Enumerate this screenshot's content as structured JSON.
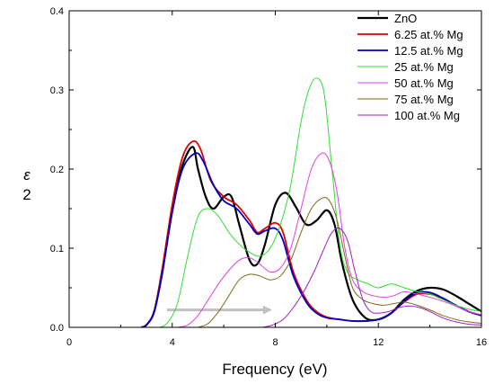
{
  "chart_data": {
    "type": "line",
    "xlabel": "Frequency (eV)",
    "ylabel": "ε",
    "ylabel_sub": "2",
    "xlim": [
      0,
      16
    ],
    "ylim": [
      0,
      0.4
    ],
    "xticks": [
      0,
      4,
      8,
      12,
      16
    ],
    "yticks": [
      0.0,
      0.1,
      0.2,
      0.3,
      0.4
    ],
    "xtick_labels": [
      "0",
      "4",
      "8",
      "12",
      "16"
    ],
    "ytick_labels": [
      "0.0",
      "0.1",
      "0.2",
      "0.3",
      "0.4"
    ],
    "grid": false,
    "legend_position": "top-right",
    "series": [
      {
        "name": "ZnO",
        "color": "#000000",
        "x": [
          2.8,
          3.0,
          3.3,
          3.6,
          4.0,
          4.4,
          4.8,
          5.0,
          5.3,
          5.6,
          6.0,
          6.3,
          6.6,
          7.0,
          7.3,
          7.6,
          8.0,
          8.4,
          8.8,
          9.2,
          9.6,
          10.0,
          10.3,
          10.6,
          11.0,
          11.5,
          12.0,
          12.5,
          13.0,
          13.5,
          14.0,
          14.5,
          15.0,
          15.5,
          16.0
        ],
        "y": [
          0.0,
          0.003,
          0.02,
          0.07,
          0.15,
          0.205,
          0.228,
          0.2,
          0.165,
          0.15,
          0.165,
          0.165,
          0.13,
          0.085,
          0.08,
          0.105,
          0.155,
          0.17,
          0.152,
          0.13,
          0.135,
          0.148,
          0.13,
          0.08,
          0.035,
          0.012,
          0.01,
          0.018,
          0.035,
          0.046,
          0.05,
          0.048,
          0.04,
          0.03,
          0.02
        ]
      },
      {
        "name": "6.25 at.% Mg",
        "color": "#e00000",
        "x": [
          2.8,
          3.0,
          3.3,
          3.6,
          4.0,
          4.4,
          4.8,
          5.1,
          5.5,
          6.0,
          6.5,
          7.0,
          7.3,
          7.6,
          8.0,
          8.3,
          8.7,
          9.2,
          9.6,
          10.0,
          10.5,
          11.0,
          11.5,
          12.0,
          12.5,
          13.0,
          13.5,
          14.0,
          14.5,
          15.0,
          15.5,
          16.0
        ],
        "y": [
          0.0,
          0.003,
          0.02,
          0.07,
          0.155,
          0.215,
          0.235,
          0.225,
          0.185,
          0.165,
          0.155,
          0.135,
          0.12,
          0.125,
          0.132,
          0.12,
          0.07,
          0.035,
          0.02,
          0.013,
          0.01,
          0.008,
          0.008,
          0.01,
          0.018,
          0.032,
          0.042,
          0.042,
          0.036,
          0.028,
          0.02,
          0.015
        ]
      },
      {
        "name": "12.5 at.% Mg",
        "color": "#0000c0",
        "x": [
          2.8,
          3.0,
          3.3,
          3.6,
          4.0,
          4.4,
          4.9,
          5.2,
          5.6,
          6.0,
          6.5,
          7.0,
          7.3,
          7.6,
          8.0,
          8.3,
          8.7,
          9.2,
          9.6,
          10.0,
          10.5,
          11.0,
          11.5,
          12.0,
          12.5,
          13.0,
          13.5,
          14.0,
          14.5,
          15.0,
          15.5,
          16.0
        ],
        "y": [
          0.0,
          0.003,
          0.02,
          0.065,
          0.145,
          0.2,
          0.22,
          0.21,
          0.18,
          0.16,
          0.15,
          0.13,
          0.118,
          0.122,
          0.125,
          0.11,
          0.065,
          0.032,
          0.018,
          0.012,
          0.01,
          0.008,
          0.008,
          0.01,
          0.018,
          0.033,
          0.044,
          0.044,
          0.037,
          0.028,
          0.02,
          0.015
        ]
      },
      {
        "name": "25 at.% Mg",
        "color": "#33dd33",
        "x": [
          3.5,
          3.8,
          4.2,
          4.6,
          5.0,
          5.4,
          5.8,
          6.2,
          6.6,
          7.0,
          7.4,
          7.8,
          8.2,
          8.6,
          9.0,
          9.3,
          9.6,
          9.9,
          10.2,
          10.5,
          10.8,
          11.2,
          11.6,
          12.0,
          12.5,
          13.0,
          13.5,
          14.0,
          14.5,
          15.0,
          15.5,
          16.0
        ],
        "y": [
          0.0,
          0.005,
          0.03,
          0.09,
          0.14,
          0.15,
          0.14,
          0.12,
          0.105,
          0.095,
          0.09,
          0.1,
          0.13,
          0.18,
          0.26,
          0.3,
          0.315,
          0.295,
          0.2,
          0.105,
          0.07,
          0.06,
          0.055,
          0.05,
          0.055,
          0.05,
          0.045,
          0.042,
          0.035,
          0.028,
          0.023,
          0.02
        ]
      },
      {
        "name": "50 at.% Mg",
        "color": "#e040e0",
        "x": [
          4.2,
          4.6,
          5.0,
          5.4,
          5.8,
          6.2,
          6.6,
          7.0,
          7.4,
          7.8,
          8.2,
          8.6,
          9.0,
          9.4,
          9.8,
          10.1,
          10.4,
          10.7,
          11.0,
          11.4,
          11.8,
          12.2,
          12.6,
          13.0,
          13.5,
          14.0,
          14.5,
          15.0,
          15.5,
          16.0
        ],
        "y": [
          0.0,
          0.003,
          0.015,
          0.035,
          0.055,
          0.072,
          0.085,
          0.088,
          0.08,
          0.07,
          0.075,
          0.1,
          0.15,
          0.2,
          0.22,
          0.21,
          0.17,
          0.1,
          0.06,
          0.045,
          0.04,
          0.038,
          0.04,
          0.045,
          0.042,
          0.038,
          0.033,
          0.027,
          0.02,
          0.016
        ]
      },
      {
        "name": "75 at.% Mg",
        "color": "#7a6a18",
        "x": [
          5.0,
          5.4,
          5.8,
          6.2,
          6.6,
          7.0,
          7.4,
          7.8,
          8.2,
          8.6,
          9.0,
          9.4,
          9.8,
          10.1,
          10.4,
          10.7,
          11.0,
          11.4,
          11.8,
          12.2,
          12.6,
          13.0,
          13.5,
          14.0,
          14.5,
          15.0,
          15.5,
          16.0
        ],
        "y": [
          0.0,
          0.005,
          0.02,
          0.04,
          0.06,
          0.067,
          0.065,
          0.06,
          0.065,
          0.085,
          0.12,
          0.15,
          0.163,
          0.16,
          0.135,
          0.09,
          0.05,
          0.035,
          0.03,
          0.028,
          0.03,
          0.032,
          0.028,
          0.022,
          0.015,
          0.01,
          0.007,
          0.005
        ]
      },
      {
        "name": "100 at.% Mg",
        "color": "#a020c0",
        "x": [
          7.5,
          7.9,
          8.3,
          8.7,
          9.1,
          9.5,
          9.9,
          10.2,
          10.5,
          10.8,
          11.1,
          11.4,
          11.7,
          12.0,
          12.4,
          12.8,
          13.2,
          13.6,
          14.0,
          14.5,
          15.0,
          15.5,
          16.0
        ],
        "y": [
          0.0,
          0.003,
          0.01,
          0.025,
          0.045,
          0.07,
          0.1,
          0.12,
          0.125,
          0.11,
          0.07,
          0.035,
          0.02,
          0.018,
          0.02,
          0.025,
          0.027,
          0.025,
          0.02,
          0.012,
          0.007,
          0.004,
          0.003
        ]
      }
    ],
    "annotations": [
      {
        "type": "arrow",
        "color": "#c0c0c0",
        "x_from": 3.8,
        "x_to": 7.8,
        "y": 0.022
      }
    ]
  }
}
